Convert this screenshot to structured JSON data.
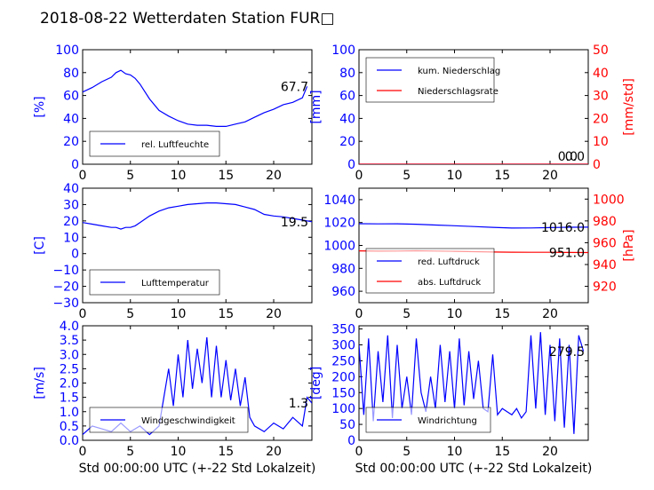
{
  "figure": {
    "title": "2018-08-22 Wetterdaten Station FUR□"
  },
  "colors": {
    "primary": "#0000ff",
    "secondary": "#ff0000",
    "frame": "#000000",
    "legend_bg": "#ffffff"
  },
  "chart_data": [
    {
      "id": "humidity",
      "type": "line",
      "xlim": [
        0,
        24
      ],
      "x_ticks": [
        "0",
        "5",
        "10",
        "15",
        "20"
      ],
      "ylim": [
        0,
        100
      ],
      "y_ticks": [
        "0",
        "20",
        "40",
        "60",
        "80",
        "100"
      ],
      "ylabel": "[%]",
      "xlabel": "",
      "legend_position": "lower-left",
      "last_value_label": "67.7",
      "series": [
        {
          "name": "rel. Luftfeuchte",
          "color": "#0000ff",
          "x": [
            0,
            1,
            2,
            3,
            3.5,
            4,
            4.5,
            5,
            5.5,
            6,
            7,
            8,
            9,
            10,
            11,
            12,
            13,
            14,
            15,
            16,
            17,
            18,
            19,
            20,
            21,
            22,
            23,
            23.5
          ],
          "y": [
            63,
            67,
            72,
            76,
            80,
            82,
            79,
            78,
            75,
            70,
            57,
            47,
            42,
            38,
            35,
            34,
            34,
            33,
            33,
            35,
            37,
            41,
            45,
            48,
            52,
            54,
            58,
            68
          ]
        }
      ]
    },
    {
      "id": "precip",
      "type": "line",
      "xlim": [
        0,
        24
      ],
      "x_ticks": [
        "0",
        "5",
        "10",
        "15",
        "20"
      ],
      "ylim": [
        0,
        100
      ],
      "y_ticks": [
        "0",
        "20",
        "40",
        "60",
        "80",
        "100"
      ],
      "ylabel": "[mm]",
      "y2lim": [
        0,
        50
      ],
      "y2_ticks": [
        "0",
        "10",
        "20",
        "30",
        "40",
        "50"
      ],
      "y2label": "[mm/std]",
      "xlabel": "",
      "legend_position": "upper-left",
      "last_value_labels": [
        "0.0",
        "0.0"
      ],
      "series": [
        {
          "name": "kum. Niederschlag",
          "color": "#0000ff",
          "axis": "left",
          "x": [
            0,
            24
          ],
          "y": [
            0,
            0
          ]
        },
        {
          "name": "Niederschlagsrate",
          "color": "#ff0000",
          "axis": "right",
          "x": [
            0,
            24
          ],
          "y": [
            0,
            0
          ]
        }
      ]
    },
    {
      "id": "temperature",
      "type": "line",
      "xlim": [
        0,
        24
      ],
      "x_ticks": [
        "0",
        "5",
        "10",
        "15",
        "20"
      ],
      "ylim": [
        -30,
        40
      ],
      "y_ticks": [
        "−30",
        "−20",
        "−10",
        "0",
        "10",
        "20",
        "30",
        "40"
      ],
      "ylabel": "[C]",
      "xlabel": "",
      "legend_position": "lower-left",
      "last_value_label": "19.5",
      "series": [
        {
          "name": "Lufttemperatur",
          "color": "#0000ff",
          "x": [
            0,
            1,
            2,
            3,
            3.5,
            4,
            4.5,
            5,
            5.5,
            6,
            7,
            8,
            9,
            10,
            11,
            12,
            13,
            14,
            15,
            16,
            17,
            18,
            19,
            20,
            21,
            22,
            23,
            24
          ],
          "y": [
            19,
            18,
            17,
            16,
            16,
            15,
            16,
            16,
            17,
            19,
            23,
            26,
            28,
            29,
            30,
            30.5,
            31,
            31,
            30.5,
            30,
            28.5,
            27,
            24,
            23,
            22.5,
            21.5,
            20.5,
            19.5
          ]
        }
      ]
    },
    {
      "id": "pressure",
      "type": "line",
      "xlim": [
        0,
        24
      ],
      "x_ticks": [
        "0",
        "5",
        "10",
        "15",
        "20"
      ],
      "ylim": [
        950,
        1050
      ],
      "y_ticks": [
        "960",
        "980",
        "1000",
        "1020",
        "1040"
      ],
      "y2lim": [
        905,
        1010
      ],
      "y2_ticks": [
        "920",
        "940",
        "960",
        "980",
        "1000"
      ],
      "y2label": "[hPa]",
      "xlabel": "",
      "legend_position": "lower-left",
      "last_value_labels": [
        "1016.0",
        "951.0"
      ],
      "series": [
        {
          "name": "red. Luftdruck",
          "color": "#0000ff",
          "axis": "left",
          "x": [
            0,
            2,
            4,
            6,
            8,
            10,
            12,
            14,
            16,
            18,
            20,
            22,
            24
          ],
          "y": [
            1019,
            1018.8,
            1018.9,
            1018.5,
            1017.8,
            1017.2,
            1016.5,
            1015.8,
            1015.2,
            1015.3,
            1015.6,
            1015.9,
            1016
          ]
        },
        {
          "name": "abs. Luftdruck",
          "color": "#ff0000",
          "axis": "right",
          "x": [
            0,
            2,
            4,
            6,
            8,
            10,
            12,
            14,
            16,
            18,
            20,
            22,
            24
          ],
          "y": [
            952.5,
            952.3,
            952.4,
            952.6,
            952.4,
            952.1,
            951.8,
            951.5,
            951.3,
            951.2,
            951.2,
            951.1,
            951
          ]
        }
      ]
    },
    {
      "id": "windspeed",
      "type": "line",
      "xlim": [
        0,
        24
      ],
      "x_ticks": [
        "0",
        "5",
        "10",
        "15",
        "20"
      ],
      "ylim": [
        0,
        4
      ],
      "y_ticks": [
        "0.0",
        "0.5",
        "1.0",
        "1.5",
        "2.0",
        "2.5",
        "3.0",
        "3.5",
        "4.0"
      ],
      "ylabel": "[m/s]",
      "xlabel": "Std 00:00:00 UTC (+-22 Std Lokalzeit)",
      "legend_position": "lower-left",
      "last_value_label": "1.3",
      "series": [
        {
          "name": "Windgeschwindigkeit",
          "color": "#0000ff",
          "x": [
            0,
            1,
            2,
            3,
            4,
            5,
            6,
            7,
            8,
            8.5,
            9,
            9.5,
            10,
            10.5,
            11,
            11.5,
            12,
            12.5,
            13,
            13.5,
            14,
            14.5,
            15,
            15.5,
            16,
            16.5,
            17,
            17.5,
            18,
            19,
            20,
            21,
            22,
            23,
            23.5,
            24
          ],
          "y": [
            0.2,
            0.5,
            0.4,
            0.3,
            0.6,
            0.3,
            0.5,
            0.2,
            0.5,
            1.5,
            2.5,
            1.2,
            3.0,
            1.5,
            3.5,
            1.8,
            3.2,
            2.0,
            3.6,
            1.5,
            3.3,
            1.5,
            2.8,
            1.4,
            2.5,
            1.2,
            2.2,
            0.8,
            0.5,
            0.3,
            0.6,
            0.4,
            0.8,
            0.5,
            1.5,
            1.3
          ]
        }
      ]
    },
    {
      "id": "winddir",
      "type": "line",
      "xlim": [
        0,
        24
      ],
      "x_ticks": [
        "0",
        "5",
        "10",
        "15",
        "20"
      ],
      "ylim": [
        0,
        360
      ],
      "y_ticks": [
        "0",
        "50",
        "100",
        "150",
        "200",
        "250",
        "300",
        "350"
      ],
      "ylabel": "[deg]",
      "xlabel": "Std 00:00:00 UTC (+-22 Std Lokalzeit)",
      "legend_position": "lower-left",
      "last_value_label": "279.5",
      "series": [
        {
          "name": "Windrichtung",
          "color": "#0000ff",
          "x": [
            0,
            0.5,
            1,
            1.5,
            2,
            2.5,
            3,
            3.5,
            4,
            4.5,
            5,
            5.5,
            6,
            6.5,
            7,
            7.5,
            8,
            8.5,
            9,
            9.5,
            10,
            10.5,
            11,
            11.5,
            12,
            12.5,
            13,
            13.5,
            14,
            14.5,
            15,
            15.5,
            16,
            16.5,
            17,
            17.5,
            18,
            18.5,
            19,
            19.5,
            20,
            20.5,
            21,
            21.5,
            22,
            22.5,
            23,
            23.5
          ],
          "y": [
            300,
            80,
            320,
            60,
            280,
            120,
            330,
            70,
            300,
            100,
            200,
            80,
            320,
            150,
            90,
            200,
            100,
            300,
            120,
            280,
            100,
            320,
            110,
            280,
            130,
            250,
            100,
            90,
            270,
            80,
            100,
            90,
            80,
            100,
            70,
            90,
            330,
            100,
            340,
            80,
            300,
            60,
            320,
            40,
            300,
            20,
            330,
            279.5
          ]
        }
      ]
    }
  ]
}
